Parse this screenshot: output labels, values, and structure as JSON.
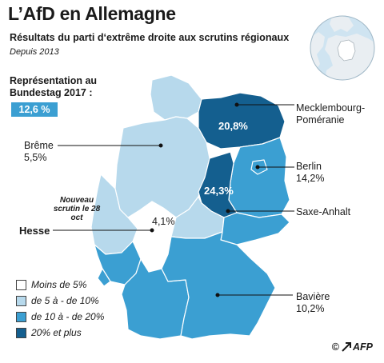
{
  "title": "L’AfD en Allemagne",
  "subtitle": "Résultats du parti d‘extrême droite aux scrutins régionaux",
  "since": "Depuis 2013",
  "representation": {
    "label": "Représentation au Bundestag 2017 :",
    "value": "12,6 %"
  },
  "regions": [
    {
      "name": "Mecklembourg-Poméranie",
      "value": "20,8%"
    },
    {
      "name": "Berlin",
      "value": "14,2%"
    },
    {
      "name": "Saxe-Anhalt",
      "value": "24,3%"
    },
    {
      "name": "Brême",
      "value": "5,5%"
    },
    {
      "name": "Hesse",
      "value": "4,1%"
    },
    {
      "name": "Bavière",
      "value": "10,2%"
    }
  ],
  "hesse_note": "Nouveau scrutin le 28 oct",
  "legend": [
    {
      "label": "Moins de 5%",
      "color": "#ffffff"
    },
    {
      "label": "de 5 à - de 10%",
      "color": "#b7d9ec"
    },
    {
      "label": "de 10 à - de 20%",
      "color": "#3b9fd2"
    },
    {
      "label": "20% et plus",
      "color": "#145f8f"
    }
  ],
  "colors": {
    "light": "#b7d9ec",
    "mid": "#3b9fd2",
    "dark": "#145f8f",
    "badge": "#3b9fd2"
  },
  "credit": {
    "symbol": "©",
    "brand": "AFP"
  }
}
